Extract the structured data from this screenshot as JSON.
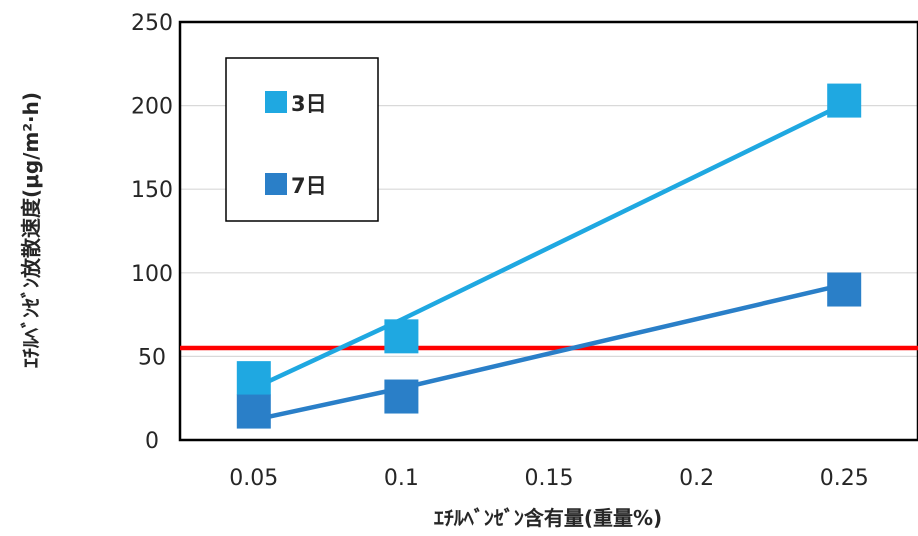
{
  "chart_data": {
    "type": "line",
    "xlabel": "ｴﾁﾙﾍﾞﾝｾﾞﾝ含有量(重量%)",
    "ylabel": "ｴﾁﾙﾍﾞﾝｾﾞﾝ放散速度(μg/m²·h)",
    "xlim": [
      0.025,
      0.275
    ],
    "ylim": [
      0,
      250
    ],
    "x_ticks": [
      "0.05",
      "0.1",
      "0.15",
      "0.2",
      "0.25"
    ],
    "y_ticks": [
      "0",
      "50",
      "100",
      "150",
      "200",
      "250"
    ],
    "grid": true,
    "legend_position": "top-left",
    "series": [
      {
        "name": "3日",
        "color": "#1fa8e1",
        "points": [
          {
            "x": 0.05,
            "y": 31
          },
          {
            "x": 0.1,
            "y": 72
          },
          {
            "x": 0.25,
            "y": 201
          }
        ],
        "markers": [
          {
            "x": 0.05,
            "y": 37
          },
          {
            "x": 0.1,
            "y": 62
          },
          {
            "x": 0.25,
            "y": 203
          }
        ]
      },
      {
        "name": "7日",
        "color": "#2a7fc8",
        "points": [
          {
            "x": 0.05,
            "y": 12
          },
          {
            "x": 0.1,
            "y": 31
          },
          {
            "x": 0.25,
            "y": 93
          }
        ],
        "markers": [
          {
            "x": 0.05,
            "y": 17
          },
          {
            "x": 0.1,
            "y": 26
          },
          {
            "x": 0.25,
            "y": 90
          }
        ]
      }
    ],
    "reference_line": {
      "y": 55,
      "color": "#ff0000"
    }
  }
}
